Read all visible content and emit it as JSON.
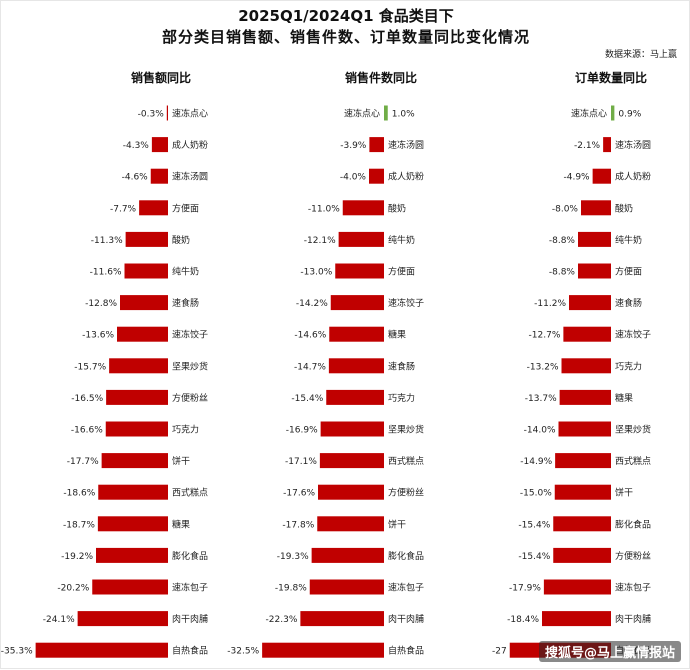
{
  "title": "2025Q1/2024Q1 食品类目下",
  "subtitle": "部分类目销售额、销售件数、订单数量同比变化情况",
  "source": "数据来源：马上赢",
  "watermark": "搜狐号@马上赢情报站",
  "colors": {
    "negative": "#c00000",
    "positive": "#70ad47",
    "text": "#222222"
  },
  "chart_data": [
    {
      "type": "bar",
      "title": "销售额同比",
      "categories": [
        "速冻点心",
        "成人奶粉",
        "速冻汤圆",
        "方便面",
        "酸奶",
        "纯牛奶",
        "速食肠",
        "速冻饺子",
        "坚果炒货",
        "方便粉丝",
        "巧克力",
        "饼干",
        "西式糕点",
        "糖果",
        "膨化食品",
        "速冻包子",
        "肉干肉脯",
        "自热食品"
      ],
      "values": [
        -0.3,
        -4.3,
        -4.6,
        -7.7,
        -11.3,
        -11.6,
        -12.8,
        -13.6,
        -15.7,
        -16.5,
        -16.6,
        -17.7,
        -18.6,
        -18.7,
        -19.2,
        -20.2,
        -24.1,
        -35.3
      ],
      "value_labels": [
        "-0.3%",
        "-4.3%",
        "-4.6%",
        "-7.7%",
        "-11.3%",
        "-11.6%",
        "-12.8%",
        "-13.6%",
        "-15.7%",
        "-16.5%",
        "-16.6%",
        "-17.7%",
        "-18.6%",
        "-18.7%",
        "-19.2%",
        "-20.2%",
        "-24.1%",
        "-35.3%"
      ]
    },
    {
      "type": "bar",
      "title": "销售件数同比",
      "categories": [
        "速冻点心",
        "速冻汤圆",
        "成人奶粉",
        "酸奶",
        "纯牛奶",
        "方便面",
        "速冻饺子",
        "糖果",
        "速食肠",
        "巧克力",
        "坚果炒货",
        "西式糕点",
        "方便粉丝",
        "饼干",
        "膨化食品",
        "速冻包子",
        "肉干肉脯",
        "自热食品"
      ],
      "values": [
        1.0,
        -3.9,
        -4.0,
        -11.0,
        -12.1,
        -13.0,
        -14.2,
        -14.6,
        -14.7,
        -15.4,
        -16.9,
        -17.1,
        -17.6,
        -17.8,
        -19.3,
        -19.8,
        -22.3,
        -32.5
      ],
      "value_labels": [
        "1.0%",
        "-3.9%",
        "-4.0%",
        "-11.0%",
        "-12.1%",
        "-13.0%",
        "-14.2%",
        "-14.6%",
        "-14.7%",
        "-15.4%",
        "-16.9%",
        "-17.1%",
        "-17.6%",
        "-17.8%",
        "-19.3%",
        "-19.8%",
        "-22.3%",
        "-32.5%"
      ]
    },
    {
      "type": "bar",
      "title": "订单数量同比",
      "categories": [
        "速冻点心",
        "速冻汤圆",
        "成人奶粉",
        "酸奶",
        "纯牛奶",
        "方便面",
        "速食肠",
        "速冻饺子",
        "巧克力",
        "糖果",
        "坚果炒货",
        "西式糕点",
        "饼干",
        "膨化食品",
        "方便粉丝",
        "速冻包子",
        "肉干肉脯",
        "自热食品"
      ],
      "values": [
        0.9,
        -2.1,
        -4.9,
        -8.0,
        -8.8,
        -8.8,
        -11.2,
        -12.7,
        -13.2,
        -13.7,
        -14.0,
        -14.9,
        -15.0,
        -15.4,
        -15.4,
        -17.9,
        -18.4,
        -27.0
      ],
      "value_labels": [
        "0.9%",
        "-2.1%",
        "-4.9%",
        "-8.0%",
        "-8.8%",
        "-8.8%",
        "-11.2%",
        "-12.7%",
        "-13.2%",
        "-13.7%",
        "-14.0%",
        "-14.9%",
        "-15.0%",
        "-15.4%",
        "-15.4%",
        "-17.9%",
        "-18.4%",
        "-27"
      ]
    }
  ]
}
